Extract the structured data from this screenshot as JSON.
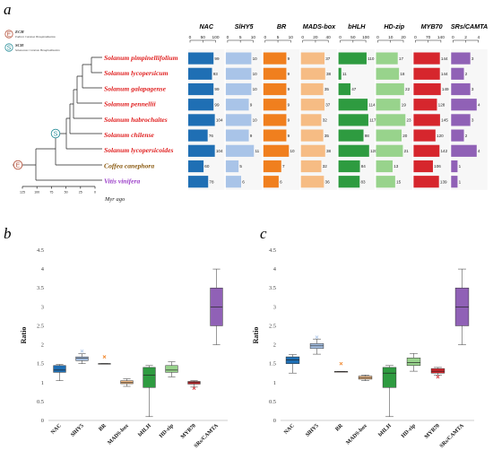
{
  "panels": {
    "a": "a",
    "b": "b",
    "c": "c"
  },
  "legend": [
    {
      "symbol": "E",
      "title": "ECH",
      "subtitle": "Eudicot Common Hexaploidization",
      "color": "#b5533c"
    },
    {
      "symbol": "S",
      "title": "SCH",
      "subtitle": "Solanaceae Common Hexaploidization",
      "color": "#2a8f9a"
    }
  ],
  "tree": {
    "axis_label": "Myr ago",
    "axis_ticks": [
      "125",
      "100",
      "75",
      "50",
      "25",
      "0"
    ],
    "nodes": [
      {
        "symbol": "S",
        "color": "#2a8f9a"
      },
      {
        "symbol": "E",
        "color": "#b5533c"
      }
    ]
  },
  "species": [
    {
      "name": "Solanum pimpinellifolium",
      "color": "#e02020"
    },
    {
      "name": "Solanum lycopersicum",
      "color": "#e02020"
    },
    {
      "name": "Solanum galapagense",
      "color": "#e02020"
    },
    {
      "name": "Solanum pennellii",
      "color": "#e02020"
    },
    {
      "name": "Solanum habrochaites",
      "color": "#e02020"
    },
    {
      "name": "Solanum chilense",
      "color": "#e02020"
    },
    {
      "name": "Solanum lycopersicoides",
      "color": "#e02020"
    },
    {
      "name": "Coffea canephora",
      "color": "#8a5a10"
    },
    {
      "name": "Vitis vinifera",
      "color": "#9a3cc8"
    }
  ],
  "families": [
    {
      "name": "NAC",
      "color": "#1f6fb4",
      "ticks": [
        "0",
        "50",
        "100"
      ],
      "max": 100,
      "values": [
        99,
        93,
        99,
        99,
        104,
        76,
        104,
        60,
        78
      ]
    },
    {
      "name": "SlHY5",
      "color": "#a9c4e8",
      "ticks": [
        "0",
        "5",
        "10"
      ],
      "max": 10,
      "values": [
        10,
        10,
        10,
        9,
        10,
        9,
        11,
        5,
        6
      ]
    },
    {
      "name": "BR",
      "color": "#f07f1e",
      "ticks": [
        "0",
        "5",
        "10"
      ],
      "max": 10,
      "values": [
        9,
        9,
        9,
        9,
        9,
        9,
        10,
        7,
        6
      ]
    },
    {
      "name": "MADS-box",
      "color": "#f6bc84",
      "ticks": [
        "0",
        "20",
        "40"
      ],
      "max": 40,
      "values": [
        37,
        38,
        35,
        37,
        32,
        35,
        38,
        32,
        36
      ]
    },
    {
      "name": "bHLH",
      "color": "#2e9b40",
      "ticks": [
        "0",
        "50",
        "100"
      ],
      "max": 100,
      "values": [
        110,
        11,
        47,
        114,
        117,
        98,
        120,
        84,
        83
      ]
    },
    {
      "name": "HD-zip",
      "color": "#98d38c",
      "ticks": [
        "0",
        "10",
        "20"
      ],
      "max": 20,
      "values": [
        17,
        18,
        22,
        19,
        23,
        20,
        21,
        13,
        15
      ]
    },
    {
      "name": "MYB70",
      "color": "#d6262d",
      "ticks": [
        "0",
        "70",
        "140"
      ],
      "max": 140,
      "values": [
        144,
        144,
        149,
        128,
        145,
        120,
        142,
        106,
        139
      ]
    },
    {
      "name": "SRs/CAMTA",
      "color": "#9061b6",
      "ticks": [
        "0",
        "2",
        "4"
      ],
      "max": 4,
      "values": [
        3,
        2,
        3,
        4,
        3,
        2,
        4,
        1,
        1
      ]
    }
  ],
  "chart_data": [
    {
      "type": "box",
      "panel": "b",
      "ylabel": "Ratio",
      "ylim": [
        0,
        4.5
      ],
      "yticks": [
        "0",
        "0.5",
        "1",
        "1.5",
        "2",
        "2.5",
        "3",
        "3.5",
        "4",
        "4.5"
      ],
      "categories": [
        "NAC",
        "SlHY5",
        "BR",
        "MADS-box",
        "bHLH",
        "HD-zip",
        "MYB70",
        "SRs/CAMTA"
      ],
      "colors": [
        "#1f6fb4",
        "#a9c4e8",
        "#f07f1e",
        "#f6bc84",
        "#2e9b40",
        "#98d38c",
        "#d6262d",
        "#9061b6"
      ],
      "boxes": [
        {
          "min": 1.05,
          "q1": 1.27,
          "median": 1.33,
          "q3": 1.45,
          "max": 1.48,
          "outliers": []
        },
        {
          "min": 1.5,
          "q1": 1.58,
          "median": 1.64,
          "q3": 1.68,
          "max": 1.76,
          "outliers": [
            1.83
          ]
        },
        {
          "min": 1.5,
          "q1": 1.5,
          "median": 1.5,
          "q3": 1.5,
          "max": 1.5,
          "outliers": [
            1.68
          ]
        },
        {
          "min": 0.9,
          "q1": 0.97,
          "median": 1.0,
          "q3": 1.05,
          "max": 1.1,
          "outliers": []
        },
        {
          "min": 0.1,
          "q1": 0.87,
          "median": 1.2,
          "q3": 1.4,
          "max": 1.45,
          "outliers": []
        },
        {
          "min": 1.15,
          "q1": 1.27,
          "median": 1.33,
          "q3": 1.45,
          "max": 1.55,
          "outliers": []
        },
        {
          "min": 0.88,
          "q1": 0.96,
          "median": 1.0,
          "q3": 1.03,
          "max": 1.05,
          "outliers": [
            0.85
          ]
        },
        {
          "min": 2.0,
          "q1": 2.5,
          "median": 3.0,
          "q3": 3.5,
          "max": 4.0,
          "outliers": []
        }
      ]
    },
    {
      "type": "box",
      "panel": "c",
      "ylabel": "Ratio",
      "ylim": [
        0,
        4.5
      ],
      "yticks": [
        "0",
        "0.5",
        "1",
        "1.5",
        "2",
        "2.5",
        "3",
        "3.5",
        "4",
        "4.5"
      ],
      "categories": [
        "NAC",
        "SlHY5",
        "BR",
        "MADS-box",
        "bHLH",
        "HD-zip",
        "MYB70",
        "SRs/CAMTA"
      ],
      "colors": [
        "#1f6fb4",
        "#a9c4e8",
        "#f07f1e",
        "#f6bc84",
        "#2e9b40",
        "#98d38c",
        "#d6262d",
        "#9061b6"
      ],
      "boxes": [
        {
          "min": 1.25,
          "q1": 1.5,
          "median": 1.6,
          "q3": 1.68,
          "max": 1.74,
          "outliers": []
        },
        {
          "min": 1.75,
          "q1": 1.9,
          "median": 1.97,
          "q3": 2.03,
          "max": 2.15,
          "outliers": [
            2.2
          ]
        },
        {
          "min": 1.29,
          "q1": 1.29,
          "median": 1.29,
          "q3": 1.29,
          "max": 1.29,
          "outliers": [
            1.5
          ]
        },
        {
          "min": 1.05,
          "q1": 1.09,
          "median": 1.13,
          "q3": 1.17,
          "max": 1.2,
          "outliers": []
        },
        {
          "min": 0.1,
          "q1": 0.87,
          "median": 1.25,
          "q3": 1.4,
          "max": 1.45,
          "outliers": []
        },
        {
          "min": 1.3,
          "q1": 1.45,
          "median": 1.53,
          "q3": 1.65,
          "max": 1.77,
          "outliers": []
        },
        {
          "min": 1.2,
          "q1": 1.25,
          "median": 1.3,
          "q3": 1.37,
          "max": 1.4,
          "outliers": [
            1.15
          ]
        },
        {
          "min": 2.0,
          "q1": 2.5,
          "median": 3.0,
          "q3": 3.5,
          "max": 4.0,
          "outliers": []
        }
      ]
    }
  ]
}
